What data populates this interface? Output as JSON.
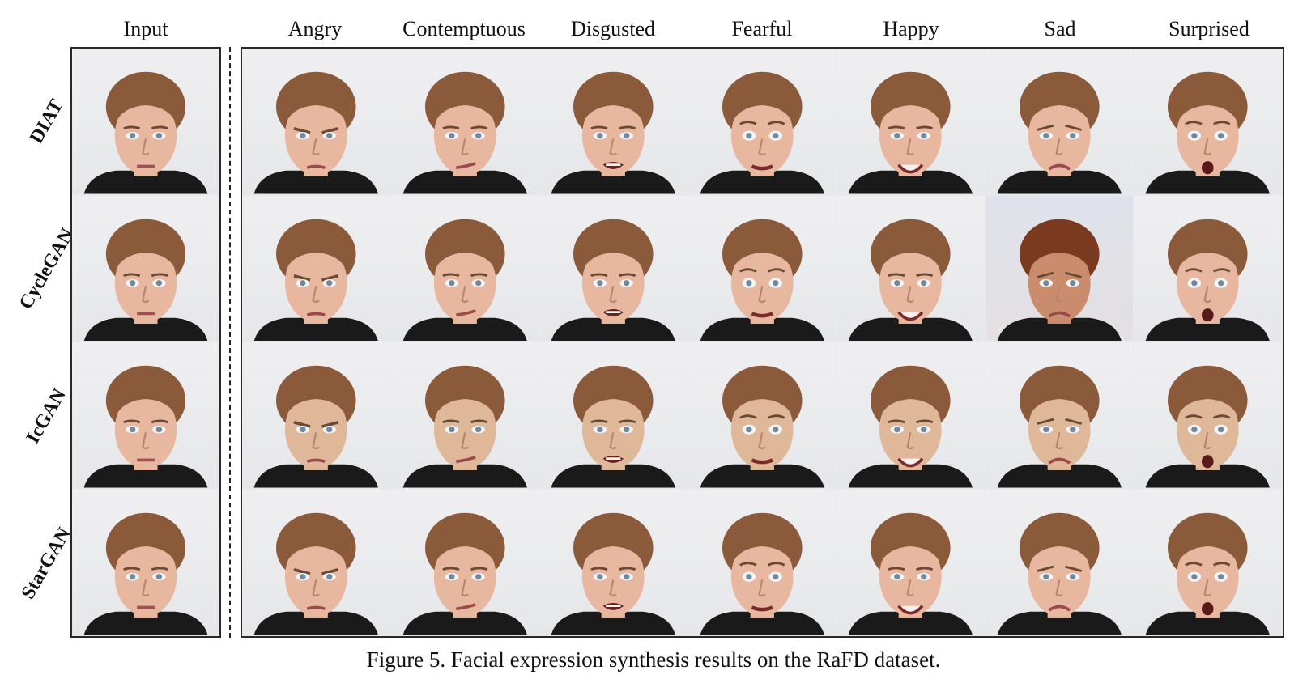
{
  "columns": {
    "input": "Input",
    "expressions": [
      "Angry",
      "Contemptuous",
      "Disgusted",
      "Fearful",
      "Happy",
      "Sad",
      "Surprised"
    ]
  },
  "rows": [
    "DIAT",
    "CycleGAN",
    "IcGAN",
    "StarGAN"
  ],
  "caption": "Figure 5. Facial expression synthesis results on the RaFD dataset.",
  "colors": {
    "panel_border": "#2a2a2a",
    "background": "#ffffff",
    "skin": "#e8b7a0",
    "hair": "#8a5a3a",
    "shirt": "#1a1a1a"
  }
}
